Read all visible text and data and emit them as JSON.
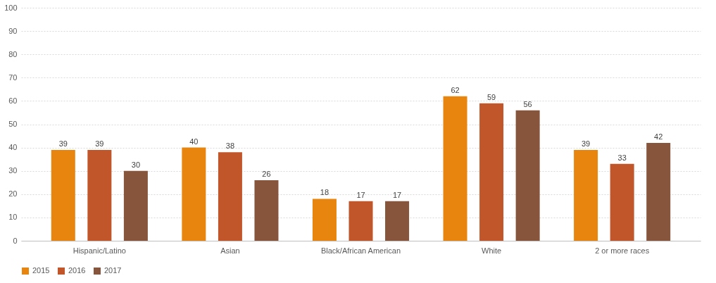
{
  "chart_data": {
    "type": "bar",
    "categories": [
      "Hispanic/Latino",
      "Asian",
      "Black/African American",
      "White",
      "2 or more races"
    ],
    "series": [
      {
        "name": "2015",
        "color": "#e8850f",
        "values": [
          39,
          40,
          18,
          62,
          39
        ]
      },
      {
        "name": "2016",
        "color": "#c0562a",
        "values": [
          39,
          38,
          17,
          59,
          33
        ]
      },
      {
        "name": "2017",
        "color": "#87553b",
        "values": [
          30,
          26,
          17,
          56,
          42
        ]
      }
    ],
    "ylim": [
      0,
      100
    ],
    "yticks": [
      0,
      10,
      20,
      30,
      40,
      50,
      60,
      70,
      80,
      90,
      100
    ],
    "grid": "y",
    "legend": "bottom",
    "data_labels": true
  }
}
